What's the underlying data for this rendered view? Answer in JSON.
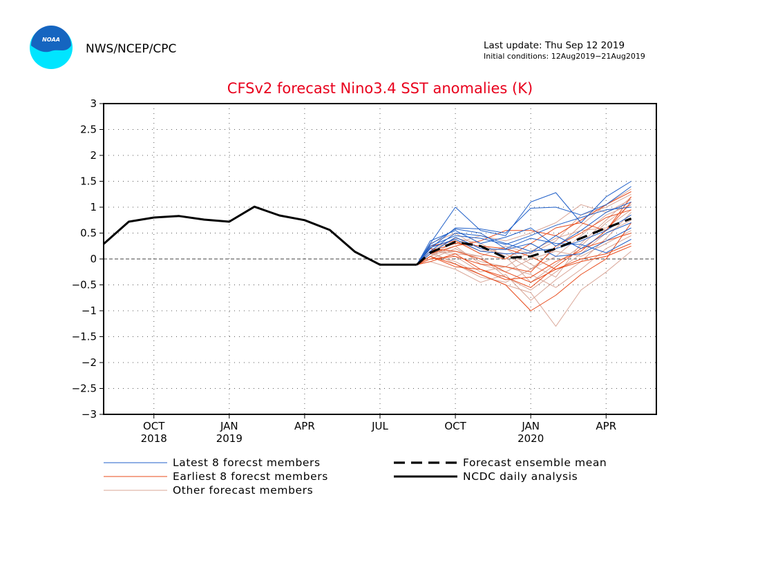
{
  "header": {
    "logo_text": "NOAA",
    "org": "NWS/NCEP/CPC",
    "last_update": "Last update: Thu Sep 12 2019",
    "initial_conditions": "Initial conditions: 12Aug2019−21Aug2019"
  },
  "colors": {
    "latest": "#1f5fc8",
    "earliest": "#e84a1a",
    "other": "#d9a596",
    "mean": "#000000",
    "analysis": "#000000",
    "title": "#e8001c",
    "logo_blue": "#1565c0",
    "logo_cyan": "#00e5ff"
  },
  "chart_data": {
    "type": "line",
    "title": "CFSv2 forecast Nino3.4 SST anomalies (K)",
    "xlabel": "",
    "ylabel": "",
    "ylim": [
      -3,
      3
    ],
    "yticks": [
      3,
      2.5,
      2,
      1.5,
      1,
      0.5,
      0,
      -0.5,
      -1,
      -1.5,
      -2,
      -2.5,
      -3
    ],
    "ytick_labels": [
      "3",
      "2.5",
      "2",
      "1.5",
      "1",
      "0.5",
      "0",
      "−0.5",
      "−1",
      "−1.5",
      "−2",
      "−2.5",
      "−3"
    ],
    "x_range_months": [
      "2018-08",
      "2020-06"
    ],
    "x_ticks": [
      {
        "month": "2018-10",
        "label": "OCT",
        "year": "2018"
      },
      {
        "month": "2019-01",
        "label": "JAN",
        "year": "2019"
      },
      {
        "month": "2019-04",
        "label": "APR",
        "year": ""
      },
      {
        "month": "2019-07",
        "label": "JUL",
        "year": ""
      },
      {
        "month": "2019-10",
        "label": "OCT",
        "year": ""
      },
      {
        "month": "2020-01",
        "label": "JAN",
        "year": "2020"
      },
      {
        "month": "2020-04",
        "label": "APR",
        "year": ""
      }
    ],
    "grid": true,
    "zero_line": true,
    "legend": [
      {
        "label": "Latest 8 forecst members",
        "style": "latest"
      },
      {
        "label": "Earliest 8 forecst members",
        "style": "earliest"
      },
      {
        "label": "Other forecast members",
        "style": "other"
      },
      {
        "label": "Forecast ensemble mean",
        "style": "mean"
      },
      {
        "label": "NCDC daily analysis",
        "style": "analysis"
      }
    ],
    "forecast_x": [
      "2019-08-15",
      "2019-09",
      "2019-10",
      "2019-11",
      "2019-12",
      "2020-01",
      "2020-02",
      "2020-03",
      "2020-04",
      "2020-05"
    ],
    "series": [
      {
        "name": "NCDC daily analysis",
        "style": "analysis",
        "x": [
          "2018-08",
          "2018-09",
          "2018-10",
          "2018-11",
          "2018-12",
          "2019-01",
          "2019-02",
          "2019-03",
          "2019-04",
          "2019-05",
          "2019-06",
          "2019-07",
          "2019-08-15"
        ],
        "values": [
          0.29,
          0.72,
          0.8,
          0.83,
          0.76,
          0.72,
          1.01,
          0.84,
          0.75,
          0.56,
          0.14,
          -0.11,
          -0.11
        ]
      },
      {
        "name": "Forecast ensemble mean",
        "style": "mean",
        "x": [
          "2019-08-15",
          "2019-09",
          "2019-10",
          "2019-11",
          "2019-12",
          "2020-01",
          "2020-02",
          "2020-03",
          "2020-04",
          "2020-05"
        ],
        "values": [
          -0.11,
          0.12,
          0.33,
          0.25,
          0.02,
          0.05,
          0.2,
          0.4,
          0.6,
          0.78
        ]
      }
    ],
    "members_latest": [
      [
        -0.11,
        0.3,
        1.0,
        0.55,
        0.45,
        1.1,
        1.28,
        0.7,
        1.2,
        1.5
      ],
      [
        -0.11,
        0.2,
        0.6,
        0.58,
        0.5,
        0.98,
        1.0,
        0.85,
        1.05,
        1.4
      ],
      [
        -0.11,
        0.35,
        0.55,
        0.3,
        0.42,
        0.6,
        0.25,
        0.55,
        0.9,
        1.1
      ],
      [
        -0.11,
        0.25,
        0.45,
        0.4,
        0.28,
        0.45,
        0.65,
        0.8,
        0.95,
        1.0
      ],
      [
        -0.11,
        0.15,
        0.5,
        0.45,
        0.3,
        0.15,
        0.2,
        0.35,
        0.55,
        0.85
      ],
      [
        -0.11,
        0.28,
        0.58,
        0.5,
        0.2,
        0.4,
        0.3,
        0.28,
        0.12,
        0.38
      ],
      [
        -0.11,
        0.1,
        0.42,
        0.2,
        0.18,
        0.3,
        0.05,
        0.1,
        0.35,
        0.6
      ],
      [
        -0.11,
        0.22,
        0.38,
        0.15,
        0.1,
        0.12,
        0.45,
        0.2,
        0.5,
        0.7
      ]
    ],
    "members_earliest": [
      [
        -0.11,
        0.1,
        0.25,
        0.35,
        0.55,
        0.55,
        0.45,
        0.75,
        1.05,
        1.3
      ],
      [
        -0.11,
        -0.05,
        0.1,
        -0.2,
        -0.4,
        -0.35,
        -0.05,
        0.15,
        0.55,
        1.2
      ],
      [
        -0.11,
        0.05,
        -0.1,
        -0.3,
        -0.5,
        -1.0,
        -0.7,
        -0.3,
        0.0,
        0.7
      ],
      [
        -0.11,
        0.2,
        0.15,
        0.0,
        -0.25,
        -0.45,
        -0.2,
        0.0,
        0.1,
        0.3
      ],
      [
        -0.11,
        0.15,
        0.3,
        0.25,
        0.2,
        0.05,
        -0.2,
        -0.05,
        0.05,
        0.25
      ],
      [
        -0.11,
        0.0,
        0.05,
        -0.1,
        -0.15,
        -0.25,
        0.25,
        0.5,
        0.8,
        0.95
      ],
      [
        -0.11,
        0.25,
        0.35,
        0.1,
        0.0,
        0.3,
        0.6,
        0.7,
        0.55,
        1.1
      ],
      [
        -0.11,
        0.05,
        -0.15,
        -0.2,
        -0.35,
        -0.55,
        -0.15,
        0.2,
        0.35,
        0.5
      ]
    ],
    "members_other": [
      [
        -0.11,
        0.3,
        0.5,
        0.2,
        0.1,
        -0.2,
        0.2,
        0.65,
        1.05,
        1.35
      ],
      [
        -0.11,
        0.1,
        -0.05,
        -0.3,
        -0.5,
        -0.65,
        -1.3,
        -0.6,
        -0.25,
        0.15
      ],
      [
        -0.11,
        -0.05,
        -0.2,
        -0.45,
        -0.3,
        -0.8,
        -0.4,
        -0.05,
        0.4,
        0.9
      ],
      [
        -0.11,
        0.2,
        0.1,
        0.05,
        0.25,
        0.1,
        0.35,
        0.85,
        1.0,
        1.25
      ],
      [
        -0.11,
        0.05,
        0.25,
        -0.1,
        -0.25,
        0.0,
        0.15,
        0.05,
        0.3,
        0.55
      ],
      [
        -0.11,
        0.15,
        0.4,
        0.3,
        0.05,
        -0.45,
        -0.1,
        0.25,
        0.7,
        1.05
      ],
      [
        -0.11,
        0.0,
        0.2,
        -0.05,
        -0.15,
        -0.3,
        -0.55,
        -0.2,
        0.2,
        0.45
      ],
      [
        -0.11,
        0.25,
        0.3,
        0.45,
        0.35,
        0.5,
        0.7,
        1.05,
        0.9,
        1.15
      ],
      [
        -0.11,
        0.1,
        0.15,
        0.05,
        -0.35,
        -0.6,
        -0.25,
        0.1,
        0.5,
        0.75
      ],
      [
        -0.11,
        0.2,
        0.05,
        -0.25,
        -0.15,
        0.15,
        0.4,
        0.55,
        0.6,
        0.95
      ],
      [
        -0.11,
        0.05,
        0.35,
        0.15,
        0.2,
        -0.1,
        -0.35,
        0.3,
        0.75,
        1.2
      ],
      [
        -0.11,
        0.15,
        -0.1,
        -0.35,
        -0.45,
        -0.2,
        0.05,
        0.45,
        0.85,
        1.05
      ]
    ]
  }
}
